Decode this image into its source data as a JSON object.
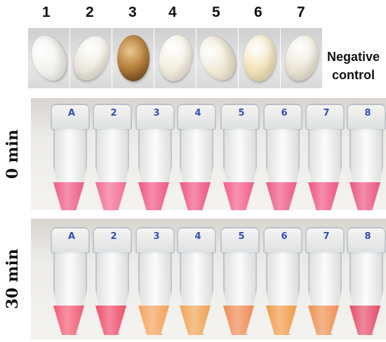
{
  "seed_labels": [
    "1",
    "2",
    "3",
    "4",
    "5",
    "6",
    "7"
  ],
  "seed_colors": [
    "#f2f1ec",
    "#ede9dc",
    "#b8813f",
    "#f3eedf",
    "#efe8d2",
    "#f1e2b8",
    "#ece6d6"
  ],
  "negative_control_label": [
    "Negative",
    "control"
  ],
  "tube_labels": [
    "A",
    "2",
    "3",
    "4",
    "5",
    "6",
    "7",
    "8"
  ],
  "rows": [
    {
      "time_label": "0 min",
      "liquid_colors": [
        "#ef5b85",
        "#f46a90",
        "#f05583",
        "#ee5583",
        "#f35d8a",
        "#ee5887",
        "#f05482",
        "#ec5580"
      ]
    },
    {
      "time_label": "30 min",
      "liquid_colors": [
        "#f35a73",
        "#ef4d6a",
        "#f4a25a",
        "#f0a352",
        "#ef8a52",
        "#f29a48",
        "#ee9050",
        "#e64d6a"
      ]
    }
  ]
}
